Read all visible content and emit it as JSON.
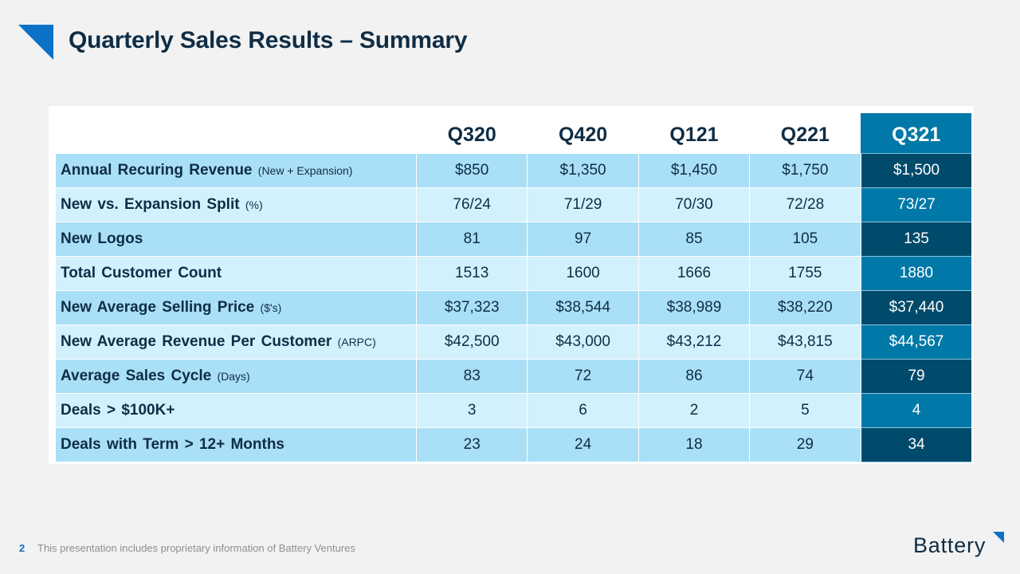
{
  "slide": {
    "title": "Quarterly Sales Results – Summary",
    "page_number": "2",
    "footer_text": "This presentation includes proprietary information of Battery Ventures",
    "brand": "Battery"
  },
  "colors": {
    "accent_blue": "#0b72c7",
    "title_navy": "#0f2d45",
    "row_odd": "#a9dff7",
    "row_even": "#d2f1fd",
    "current_dark": "#004b6b",
    "current_mid": "#0078a8"
  },
  "table": {
    "columns": [
      "Q320",
      "Q420",
      "Q121",
      "Q221",
      "Q321"
    ],
    "highlighted_column": "Q321",
    "rows": [
      {
        "label": "Annual Recuring Revenue",
        "note": "(New + Expansion)",
        "values": [
          "$850",
          "$1,350",
          "$1,450",
          "$1,750",
          "$1,500"
        ]
      },
      {
        "label": "New vs. Expansion Split",
        "note": "(%)",
        "values": [
          "76/24",
          "71/29",
          "70/30",
          "72/28",
          "73/27"
        ]
      },
      {
        "label": "New Logos",
        "note": "",
        "values": [
          "81",
          "97",
          "85",
          "105",
          "135"
        ]
      },
      {
        "label": "Total Customer Count",
        "note": "",
        "values": [
          "1513",
          "1600",
          "1666",
          "1755",
          "1880"
        ]
      },
      {
        "label": "New Average Selling Price",
        "note": "($'s)",
        "values": [
          "$37,323",
          "$38,544",
          "$38,989",
          "$38,220",
          "$37,440"
        ]
      },
      {
        "label": "New Average Revenue Per Customer",
        "note": "(ARPC)",
        "values": [
          "$42,500",
          "$43,000",
          "$43,212",
          "$43,815",
          "$44,567"
        ]
      },
      {
        "label": "Average Sales Cycle",
        "note": "(Days)",
        "values": [
          "83",
          "72",
          "86",
          "74",
          "79"
        ]
      },
      {
        "label": "Deals > $100K+",
        "note": "",
        "values": [
          "3",
          "6",
          "2",
          "5",
          "4"
        ]
      },
      {
        "label": "Deals with Term > 12+ Months",
        "note": "",
        "values": [
          "23",
          "24",
          "18",
          "29",
          "34"
        ]
      }
    ]
  }
}
